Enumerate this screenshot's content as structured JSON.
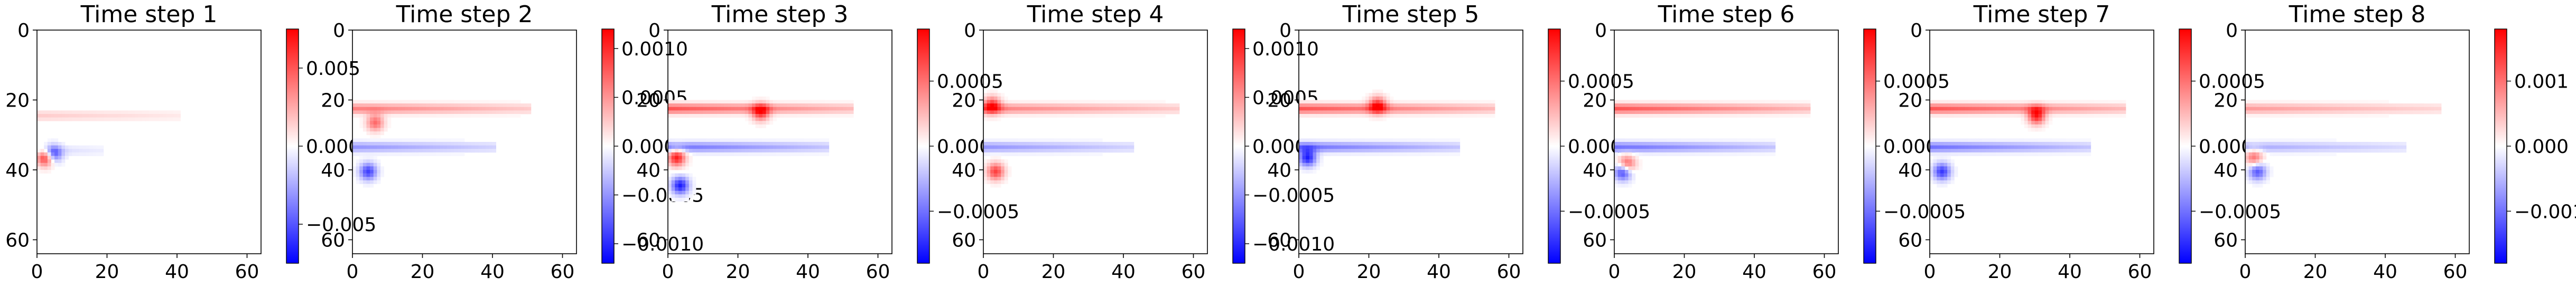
{
  "chart_data": [
    {
      "type": "heatmap",
      "title": "Time step 1",
      "xlim": [
        0,
        64
      ],
      "ylim": [
        64,
        0
      ],
      "xticks": [
        0,
        20,
        40,
        60
      ],
      "yticks": [
        0,
        20,
        40,
        60
      ],
      "colormap": {
        "low": "#0000ff",
        "mid": "#ffffff",
        "high": "#ff0000"
      },
      "colorbar": {
        "vmin": -0.0075,
        "vmax": 0.0075,
        "ticks": [
          -0.005,
          0.0,
          0.005
        ],
        "tick_labels": [
          "−0.005",
          "0.000",
          "0.005"
        ]
      },
      "features": [
        {
          "kind": "band",
          "row": 24,
          "col_start": 0,
          "col_end": 40,
          "amp": 0.0015
        },
        {
          "kind": "band",
          "row": 34,
          "col_start": 0,
          "col_end": 18,
          "amp": -0.0012
        },
        {
          "kind": "blob",
          "row": 36,
          "col": 2,
          "amp": 0.007
        },
        {
          "kind": "blob",
          "row": 35,
          "col": 4,
          "amp": -0.006
        }
      ]
    },
    {
      "type": "heatmap",
      "title": "Time step 2",
      "xlim": [
        0,
        64
      ],
      "ylim": [
        64,
        0
      ],
      "xticks": [
        0,
        20,
        40,
        60
      ],
      "yticks": [
        0,
        20,
        40,
        60
      ],
      "colormap": {
        "low": "#0000ff",
        "mid": "#ffffff",
        "high": "#ff0000"
      },
      "colorbar": {
        "vmin": -0.0012,
        "vmax": 0.0012,
        "ticks": [
          -0.001,
          -0.0005,
          0.0,
          0.0005,
          0.001
        ],
        "tick_labels": [
          "−0.0010",
          "−0.0005",
          "0.0000",
          "0.0005",
          "0.0010"
        ]
      },
      "features": [
        {
          "kind": "band",
          "row": 22,
          "col_start": 0,
          "col_end": 50,
          "amp": 0.0006
        },
        {
          "kind": "band",
          "row": 33,
          "col_start": 0,
          "col_end": 40,
          "amp": -0.0005
        },
        {
          "kind": "blob",
          "row": 40,
          "col": 4,
          "amp": -0.0009
        },
        {
          "kind": "blob",
          "row": 26,
          "col": 6,
          "amp": 0.0007
        }
      ]
    },
    {
      "type": "heatmap",
      "title": "Time step 3",
      "xlim": [
        0,
        64
      ],
      "ylim": [
        64,
        0
      ],
      "xticks": [
        0,
        20,
        40,
        60
      ],
      "yticks": [
        0,
        20,
        40,
        60
      ],
      "colormap": {
        "low": "#0000ff",
        "mid": "#ffffff",
        "high": "#ff0000"
      },
      "colorbar": {
        "vmin": -0.0009,
        "vmax": 0.0009,
        "ticks": [
          -0.0005,
          0.0,
          0.0005
        ],
        "tick_labels": [
          "−0.0005",
          "0.0000",
          "0.0005"
        ]
      },
      "features": [
        {
          "kind": "band",
          "row": 22,
          "col_start": 0,
          "col_end": 52,
          "amp": 0.0006
        },
        {
          "kind": "band",
          "row": 33,
          "col_start": 0,
          "col_end": 45,
          "amp": -0.0005
        },
        {
          "kind": "blob",
          "row": 44,
          "col": 3,
          "amp": -0.0008
        },
        {
          "kind": "blob",
          "row": 36,
          "col": 2,
          "amp": 0.0008
        },
        {
          "kind": "blob",
          "row": 23,
          "col": 26,
          "amp": 0.0007
        }
      ]
    },
    {
      "type": "heatmap",
      "title": "Time step 4",
      "xlim": [
        0,
        64
      ],
      "ylim": [
        64,
        0
      ],
      "xticks": [
        0,
        20,
        40,
        60
      ],
      "yticks": [
        0,
        20,
        40,
        60
      ],
      "colormap": {
        "low": "#0000ff",
        "mid": "#ffffff",
        "high": "#ff0000"
      },
      "colorbar": {
        "vmin": -0.0012,
        "vmax": 0.0012,
        "ticks": [
          -0.001,
          -0.0005,
          0.0,
          0.0005,
          0.001
        ],
        "tick_labels": [
          "−0.0010",
          "−0.0005",
          "0.0000",
          "0.0005",
          "0.0010"
        ]
      },
      "features": [
        {
          "kind": "band",
          "row": 22,
          "col_start": 0,
          "col_end": 55,
          "amp": 0.0006
        },
        {
          "kind": "band",
          "row": 33,
          "col_start": 0,
          "col_end": 42,
          "amp": -0.0005
        },
        {
          "kind": "blob",
          "row": 40,
          "col": 3,
          "amp": 0.0009
        },
        {
          "kind": "blob",
          "row": 21,
          "col": 2,
          "amp": 0.0009
        }
      ]
    },
    {
      "type": "heatmap",
      "title": "Time step 5",
      "xlim": [
        0,
        64
      ],
      "ylim": [
        64,
        0
      ],
      "xticks": [
        0,
        20,
        40,
        60
      ],
      "yticks": [
        0,
        20,
        40,
        60
      ],
      "colormap": {
        "low": "#0000ff",
        "mid": "#ffffff",
        "high": "#ff0000"
      },
      "colorbar": {
        "vmin": -0.0009,
        "vmax": 0.0009,
        "ticks": [
          -0.0005,
          0.0,
          0.0005
        ],
        "tick_labels": [
          "−0.0005",
          "0.0000",
          "0.0005"
        ]
      },
      "features": [
        {
          "kind": "band",
          "row": 22,
          "col_start": 0,
          "col_end": 55,
          "amp": 0.0006
        },
        {
          "kind": "band",
          "row": 33,
          "col_start": 0,
          "col_end": 45,
          "amp": -0.0005
        },
        {
          "kind": "blob",
          "row": 36,
          "col": 2,
          "amp": -0.0008
        },
        {
          "kind": "blob",
          "row": 21,
          "col": 22,
          "amp": 0.0007
        }
      ]
    },
    {
      "type": "heatmap",
      "title": "Time step 6",
      "xlim": [
        0,
        64
      ],
      "ylim": [
        64,
        0
      ],
      "xticks": [
        0,
        20,
        40,
        60
      ],
      "yticks": [
        0,
        20,
        40,
        60
      ],
      "colormap": {
        "low": "#0000ff",
        "mid": "#ffffff",
        "high": "#ff0000"
      },
      "colorbar": {
        "vmin": -0.0009,
        "vmax": 0.0009,
        "ticks": [
          -0.0005,
          0.0,
          0.0005
        ],
        "tick_labels": [
          "−0.0005",
          "0.0000",
          "0.0005"
        ]
      },
      "features": [
        {
          "kind": "band",
          "row": 22,
          "col_start": 0,
          "col_end": 55,
          "amp": 0.0006
        },
        {
          "kind": "band",
          "row": 33,
          "col_start": 0,
          "col_end": 45,
          "amp": -0.0005
        },
        {
          "kind": "blob",
          "row": 40,
          "col": 2,
          "amp": -0.0008
        },
        {
          "kind": "blob",
          "row": 38,
          "col": 3,
          "amp": 0.0007
        }
      ]
    },
    {
      "type": "heatmap",
      "title": "Time step 7",
      "xlim": [
        0,
        64
      ],
      "ylim": [
        64,
        0
      ],
      "xticks": [
        0,
        20,
        40,
        60
      ],
      "yticks": [
        0,
        20,
        40,
        60
      ],
      "colormap": {
        "low": "#0000ff",
        "mid": "#ffffff",
        "high": "#ff0000"
      },
      "colorbar": {
        "vmin": -0.0009,
        "vmax": 0.0009,
        "ticks": [
          -0.0005,
          0.0,
          0.0005
        ],
        "tick_labels": [
          "−0.0005",
          "0.0000",
          "0.0005"
        ]
      },
      "features": [
        {
          "kind": "band",
          "row": 22,
          "col_start": 0,
          "col_end": 55,
          "amp": 0.0006
        },
        {
          "kind": "band",
          "row": 33,
          "col_start": 0,
          "col_end": 45,
          "amp": -0.0005
        },
        {
          "kind": "blob",
          "row": 40,
          "col": 3,
          "amp": -0.0007
        },
        {
          "kind": "blob",
          "row": 24,
          "col": 30,
          "amp": 0.0008
        }
      ]
    },
    {
      "type": "heatmap",
      "title": "Time step 8",
      "xlim": [
        0,
        64
      ],
      "ylim": [
        64,
        0
      ],
      "xticks": [
        0,
        20,
        40,
        60
      ],
      "yticks": [
        0,
        20,
        40,
        60
      ],
      "colormap": {
        "low": "#0000ff",
        "mid": "#ffffff",
        "high": "#ff0000"
      },
      "colorbar": {
        "vmin": -0.0018,
        "vmax": 0.0018,
        "ticks": [
          -0.001,
          0.0,
          0.001
        ],
        "tick_labels": [
          "−0.001",
          "0.000",
          "0.001"
        ]
      },
      "features": [
        {
          "kind": "band",
          "row": 22,
          "col_start": 0,
          "col_end": 55,
          "amp": 0.0007
        },
        {
          "kind": "band",
          "row": 33,
          "col_start": 0,
          "col_end": 45,
          "amp": -0.0006
        },
        {
          "kind": "blob",
          "row": 40,
          "col": 3,
          "amp": -0.0012
        },
        {
          "kind": "blob",
          "row": 36,
          "col": 2,
          "amp": 0.001
        }
      ]
    }
  ]
}
